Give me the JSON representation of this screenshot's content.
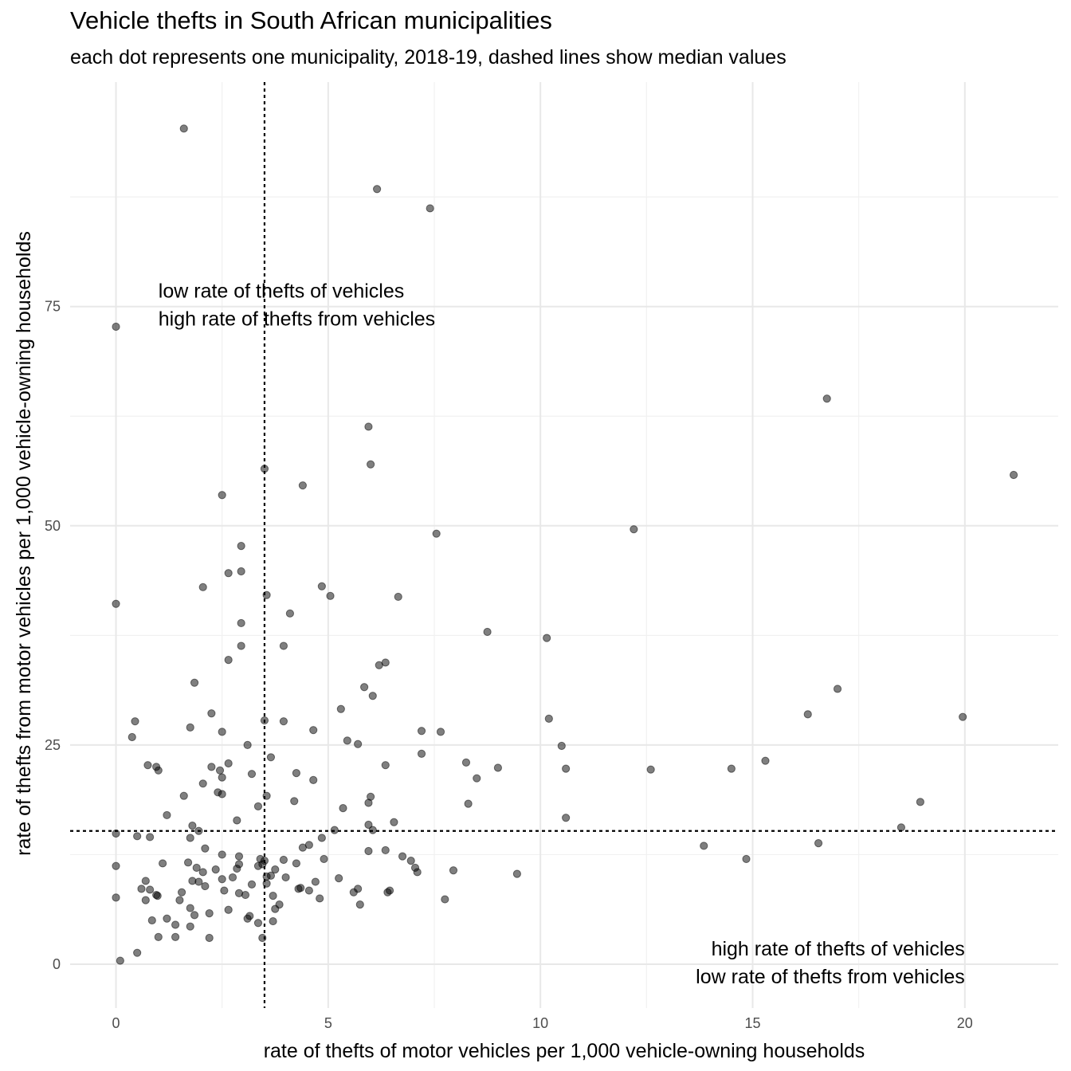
{
  "chart_data": {
    "type": "scatter",
    "title": "Vehicle thefts in South African municipalities",
    "subtitle": "each dot represents one municipality, 2018-19, dashed lines show median values",
    "xlabel": "rate of thefts of motor vehicles per 1,000 vehicle-owning households",
    "ylabel": "rate of thefts from motor vehicles per 1,000 vehicle-owning households",
    "xlim": [
      -1.08,
      22.2
    ],
    "ylim": [
      -5.0,
      100.6
    ],
    "x_ticks": [
      0,
      5,
      10,
      15,
      20
    ],
    "y_ticks": [
      0,
      25,
      50,
      75
    ],
    "grid": true,
    "median": {
      "x": 3.5,
      "y": 15.2
    },
    "annotations": [
      {
        "lines": [
          "low rate of thefts of vehicles",
          "high rate of thefts from vehicles"
        ],
        "x": 1.0,
        "y": 76.0,
        "align": "left"
      },
      {
        "lines": [
          "high rate of thefts of vehicles",
          "low rate of thefts from vehicles"
        ],
        "x": 20.0,
        "y": 1.0,
        "align": "right"
      }
    ],
    "points": [
      [
        1.6,
        95.3
      ],
      [
        6.15,
        88.4
      ],
      [
        7.4,
        86.2
      ],
      [
        0.0,
        72.7
      ],
      [
        16.75,
        64.5
      ],
      [
        5.95,
        61.3
      ],
      [
        21.15,
        55.8
      ],
      [
        3.5,
        56.5
      ],
      [
        6.0,
        57.0
      ],
      [
        4.4,
        54.6
      ],
      [
        2.5,
        53.5
      ],
      [
        12.2,
        49.6
      ],
      [
        7.55,
        49.1
      ],
      [
        2.95,
        47.7
      ],
      [
        2.65,
        44.6
      ],
      [
        2.95,
        44.8
      ],
      [
        2.05,
        43.0
      ],
      [
        4.85,
        43.1
      ],
      [
        5.05,
        42.0
      ],
      [
        6.65,
        41.9
      ],
      [
        3.55,
        42.1
      ],
      [
        0.0,
        41.1
      ],
      [
        4.1,
        40.0
      ],
      [
        2.95,
        38.9
      ],
      [
        8.75,
        37.9
      ],
      [
        10.15,
        37.2
      ],
      [
        2.95,
        36.3
      ],
      [
        3.95,
        36.3
      ],
      [
        2.65,
        34.7
      ],
      [
        6.35,
        34.4
      ],
      [
        6.2,
        34.1
      ],
      [
        1.85,
        32.1
      ],
      [
        5.85,
        31.6
      ],
      [
        17.0,
        31.4
      ],
      [
        6.05,
        30.6
      ],
      [
        5.3,
        29.1
      ],
      [
        2.25,
        28.6
      ],
      [
        16.3,
        28.5
      ],
      [
        19.95,
        28.2
      ],
      [
        10.2,
        28.0
      ],
      [
        3.5,
        27.8
      ],
      [
        3.95,
        27.7
      ],
      [
        0.45,
        27.7
      ],
      [
        1.75,
        27.0
      ],
      [
        4.65,
        26.7
      ],
      [
        7.2,
        26.6
      ],
      [
        7.65,
        26.5
      ],
      [
        2.5,
        26.5
      ],
      [
        0.38,
        25.9
      ],
      [
        5.45,
        25.5
      ],
      [
        5.7,
        25.1
      ],
      [
        3.1,
        25.0
      ],
      [
        10.5,
        24.9
      ],
      [
        7.2,
        24.0
      ],
      [
        3.65,
        23.6
      ],
      [
        15.3,
        23.2
      ],
      [
        8.25,
        23.0
      ],
      [
        2.65,
        22.9
      ],
      [
        0.75,
        22.7
      ],
      [
        6.35,
        22.7
      ],
      [
        2.25,
        22.5
      ],
      [
        0.95,
        22.5
      ],
      [
        9.0,
        22.4
      ],
      [
        1.0,
        22.1
      ],
      [
        10.6,
        22.3
      ],
      [
        12.6,
        22.2
      ],
      [
        14.5,
        22.3
      ],
      [
        2.45,
        22.1
      ],
      [
        3.2,
        21.7
      ],
      [
        4.25,
        21.8
      ],
      [
        2.5,
        21.3
      ],
      [
        8.5,
        21.2
      ],
      [
        4.65,
        21.0
      ],
      [
        2.05,
        20.6
      ],
      [
        2.4,
        19.6
      ],
      [
        2.5,
        19.4
      ],
      [
        1.6,
        19.2
      ],
      [
        3.55,
        19.2
      ],
      [
        6.0,
        19.1
      ],
      [
        18.95,
        18.5
      ],
      [
        4.2,
        18.6
      ],
      [
        5.95,
        18.4
      ],
      [
        8.3,
        18.3
      ],
      [
        3.35,
        18.0
      ],
      [
        5.35,
        17.8
      ],
      [
        1.2,
        17.0
      ],
      [
        10.6,
        16.7
      ],
      [
        2.85,
        16.4
      ],
      [
        6.55,
        16.2
      ],
      [
        5.95,
        15.9
      ],
      [
        1.8,
        15.8
      ],
      [
        18.5,
        15.6
      ],
      [
        6.05,
        15.3
      ],
      [
        1.95,
        15.2
      ],
      [
        5.15,
        15.3
      ],
      [
        0.0,
        14.9
      ],
      [
        0.5,
        14.6
      ],
      [
        0.8,
        14.5
      ],
      [
        1.75,
        14.4
      ],
      [
        4.85,
        14.4
      ],
      [
        16.55,
        13.8
      ],
      [
        4.55,
        13.6
      ],
      [
        13.85,
        13.5
      ],
      [
        4.4,
        13.3
      ],
      [
        2.1,
        13.2
      ],
      [
        6.35,
        13.0
      ],
      [
        5.95,
        12.9
      ],
      [
        2.5,
        12.5
      ],
      [
        2.9,
        12.3
      ],
      [
        6.75,
        12.3
      ],
      [
        14.85,
        12.0
      ],
      [
        4.9,
        12.0
      ],
      [
        3.95,
        11.9
      ],
      [
        3.4,
        12.0
      ],
      [
        6.95,
        11.8
      ],
      [
        3.5,
        11.8
      ],
      [
        3.45,
        11.4
      ],
      [
        2.9,
        11.4
      ],
      [
        1.1,
        11.5
      ],
      [
        4.25,
        11.5
      ],
      [
        1.7,
        11.6
      ],
      [
        3.35,
        11.2
      ],
      [
        0.0,
        11.2
      ],
      [
        1.9,
        11.0
      ],
      [
        7.05,
        11.0
      ],
      [
        2.85,
        10.9
      ],
      [
        2.35,
        10.8
      ],
      [
        3.75,
        10.8
      ],
      [
        7.1,
        10.5
      ],
      [
        7.95,
        10.7
      ],
      [
        2.05,
        10.5
      ],
      [
        9.45,
        10.3
      ],
      [
        3.65,
        10.1
      ],
      [
        3.55,
        10.0
      ],
      [
        2.75,
        9.9
      ],
      [
        4.0,
        9.9
      ],
      [
        5.25,
        9.8
      ],
      [
        2.5,
        9.7
      ],
      [
        1.8,
        9.5
      ],
      [
        0.7,
        9.5
      ],
      [
        1.95,
        9.4
      ],
      [
        4.7,
        9.4
      ],
      [
        3.55,
        9.2
      ],
      [
        3.2,
        9.1
      ],
      [
        2.1,
        8.9
      ],
      [
        4.35,
        8.7
      ],
      [
        4.3,
        8.6
      ],
      [
        5.7,
        8.6
      ],
      [
        4.55,
        8.4
      ],
      [
        6.45,
        8.4
      ],
      [
        2.55,
        8.4
      ],
      [
        0.6,
        8.6
      ],
      [
        0.8,
        8.5
      ],
      [
        2.9,
        8.1
      ],
      [
        5.6,
        8.2
      ],
      [
        1.55,
        8.2
      ],
      [
        3.05,
        7.9
      ],
      [
        0.98,
        7.8
      ],
      [
        6.4,
        8.2
      ],
      [
        3.7,
        7.8
      ],
      [
        0.95,
        7.9
      ],
      [
        0.0,
        7.6
      ],
      [
        4.8,
        7.5
      ],
      [
        7.75,
        7.4
      ],
      [
        1.5,
        7.3
      ],
      [
        0.7,
        7.3
      ],
      [
        5.75,
        6.8
      ],
      [
        3.85,
        6.8
      ],
      [
        1.75,
        6.4
      ],
      [
        3.75,
        6.3
      ],
      [
        2.65,
        6.2
      ],
      [
        2.2,
        5.8
      ],
      [
        1.85,
        5.6
      ],
      [
        3.15,
        5.5
      ],
      [
        3.1,
        5.2
      ],
      [
        1.2,
        5.2
      ],
      [
        0.85,
        5.0
      ],
      [
        3.7,
        4.9
      ],
      [
        3.35,
        4.7
      ],
      [
        1.4,
        4.5
      ],
      [
        1.75,
        4.3
      ],
      [
        1.0,
        3.1
      ],
      [
        1.4,
        3.1
      ],
      [
        2.2,
        3.0
      ],
      [
        3.45,
        3.0
      ],
      [
        0.5,
        1.3
      ],
      [
        0.1,
        0.4
      ]
    ]
  }
}
